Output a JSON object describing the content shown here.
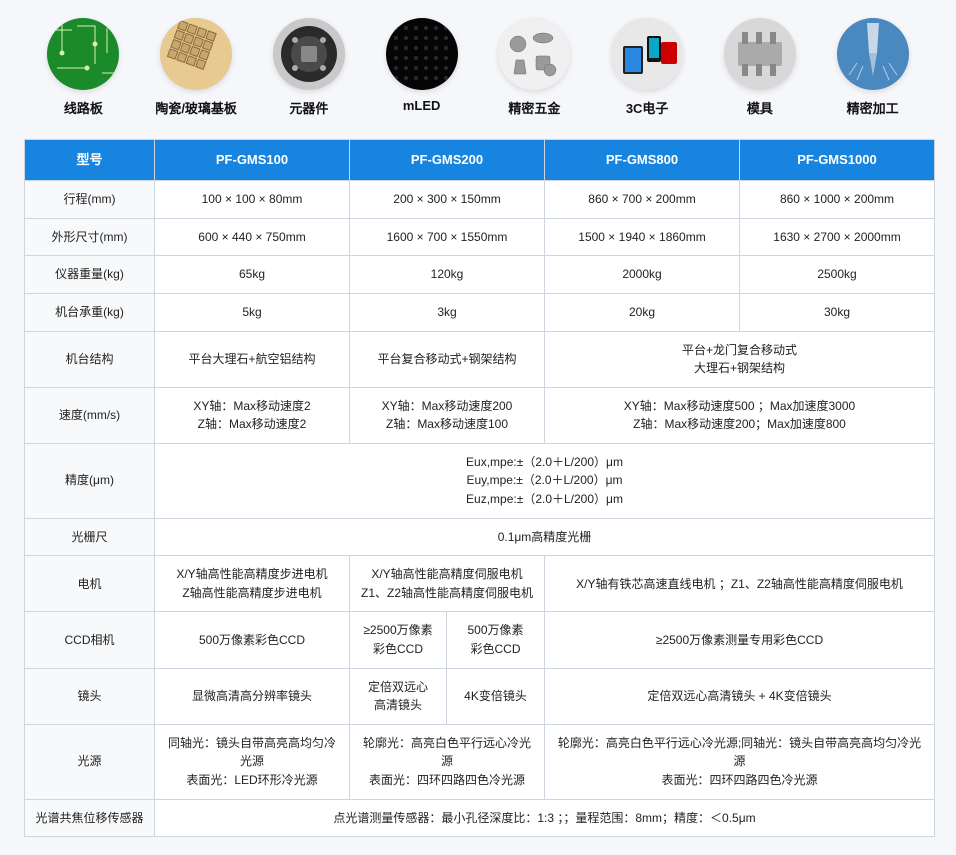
{
  "icons": [
    {
      "label": "线路板",
      "name": "pcb"
    },
    {
      "label": "陶瓷/玻璃基板",
      "name": "ceramic"
    },
    {
      "label": "元器件",
      "name": "component"
    },
    {
      "label": "mLED",
      "name": "mled"
    },
    {
      "label": "精密五金",
      "name": "hardware"
    },
    {
      "label": "3C电子",
      "name": "3c"
    },
    {
      "label": "模具",
      "name": "mold"
    },
    {
      "label": "精密加工",
      "name": "machining"
    }
  ],
  "table": {
    "headers": [
      "型号",
      "PF-GMS100",
      "PF-GMS200",
      "PF-GMS800",
      "PF-GMS1000"
    ],
    "rows": {
      "travel": {
        "label": "行程(mm)",
        "v": [
          "100 × 100 × 80mm",
          "200 × 300 × 150mm",
          "860 × 700 × 200mm",
          "860 × 1000 × 200mm"
        ]
      },
      "dim": {
        "label": "外形尺寸(mm)",
        "v": [
          "600 × 440 × 750mm",
          "1600 × 700 × 1550mm",
          "1500 × 1940 × 1860mm",
          "1630 × 2700 × 2000mm"
        ]
      },
      "weight": {
        "label": "仪器重量(kg)",
        "v": [
          "65kg",
          "120kg",
          "2000kg",
          "2500kg"
        ]
      },
      "load": {
        "label": "机台承重(kg)",
        "v": [
          "5kg",
          "3kg",
          "20kg",
          "30kg"
        ]
      },
      "struct": {
        "label": "机台结构",
        "v1": "平台大理石+航空铝结构",
        "v2": "平台复合移动式+钢架结构",
        "v34": "平台+龙门复合移动式\n大理石+钢架结构"
      },
      "speed": {
        "label": "速度(mm/s)",
        "v1": "XY轴：Max移动速度2\nZ轴：Max移动速度2",
        "v2": "XY轴：Max移动速度200\nZ轴：Max移动速度100",
        "v34": "XY轴：Max移动速度500 ；Max加速度3000\nZ轴：Max移动速度200；Max加速度800"
      },
      "accuracy": {
        "label": "精度(μm)",
        "merged": "Eux,mpe:±（2.0＋L/200）μm\nEuy,mpe:±（2.0＋L/200）μm\nEuz,mpe:±（2.0＋L/200）μm"
      },
      "scale": {
        "label": "光栅尺",
        "merged": "0.1μm高精度光栅"
      },
      "motor": {
        "label": "电机",
        "v1": "X/Y轴高性能高精度步进电机\nZ轴高性能高精度步进电机",
        "v2": "X/Y轴高性能高精度伺服电机\nZ1、Z2轴高性能高精度伺服电机",
        "v34": "X/Y轴有铁芯高速直线电机 ；Z1、Z2轴高性能高精度伺服电机"
      },
      "ccd": {
        "label": "CCD相机",
        "v1": "500万像素彩色CCD",
        "v2a": "≥2500万像素\n彩色CCD",
        "v2b": "500万像素\n彩色CCD",
        "v34": "≥2500万像素测量专用彩色CCD"
      },
      "lens": {
        "label": "镜头",
        "v1": "显微高清高分辨率镜头",
        "v2a": "定倍双远心\n高清镜头",
        "v2b": "4K变倍镜头",
        "v34": "定倍双远心高清镜头 + 4K变倍镜头"
      },
      "light": {
        "label": "光源",
        "v1": "同轴光：镜头自带高亮高均匀冷光源\n表面光：LED环形冷光源",
        "v2": "轮廓光：高亮白色平行远心冷光源\n表面光：四环四路四色冷光源",
        "v34": "轮廓光：高亮白色平行远心冷光源;同轴光：镜头自带高亮高均匀冷光源\n表面光：四环四路四色冷光源"
      },
      "sensor": {
        "label": "光谱共焦位移传感器",
        "merged": "点光谱测量传感器：最小孔径深度比：1:3 ；；量程范围：8mm；精度：＜0.5μm"
      }
    }
  },
  "colors": {
    "header_bg": "#1785e0",
    "border": "#cfd5e0",
    "page_bg": "#f5f7fa"
  }
}
